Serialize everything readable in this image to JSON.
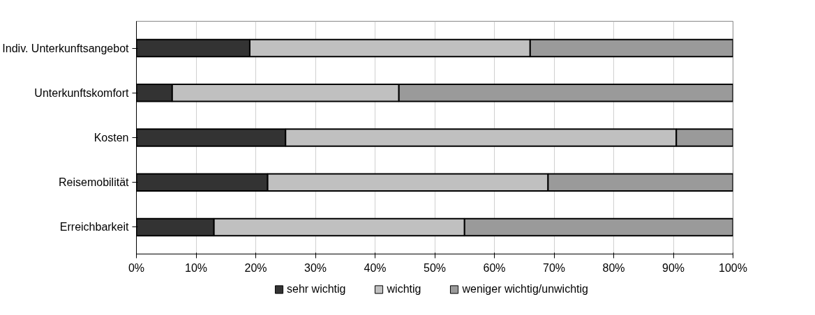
{
  "chart_data": {
    "type": "bar",
    "orientation": "horizontal",
    "stacked": true,
    "categories": [
      "Indiv. Unterkunftsangebot",
      "Unterkunftskomfort",
      "Kosten",
      "Reisemobilität",
      "Erreichbarkeit"
    ],
    "series": [
      {
        "name": "sehr wichtig",
        "color": "#333333",
        "values": [
          19,
          6,
          25,
          22,
          13
        ]
      },
      {
        "name": "wichtig",
        "color": "#c0c0c0",
        "values": [
          47,
          38,
          65.5,
          47,
          42
        ]
      },
      {
        "name": "weniger wichtig/unwichtig",
        "color": "#9a9a9a",
        "values": [
          34,
          56,
          9.5,
          31,
          45
        ]
      }
    ],
    "xlim": [
      0,
      100
    ],
    "xticks": [
      {
        "value": 0,
        "label": "0%"
      },
      {
        "value": 10,
        "label": "10%"
      },
      {
        "value": 20,
        "label": "20%"
      },
      {
        "value": 30,
        "label": "30%"
      },
      {
        "value": 40,
        "label": "40%"
      },
      {
        "value": 50,
        "label": "50%"
      },
      {
        "value": 60,
        "label": "60%"
      },
      {
        "value": 70,
        "label": "70%"
      },
      {
        "value": 80,
        "label": "80%"
      },
      {
        "value": 90,
        "label": "90%"
      },
      {
        "value": 100,
        "label": "100%"
      }
    ],
    "grid": "x",
    "legend": "bottom"
  }
}
